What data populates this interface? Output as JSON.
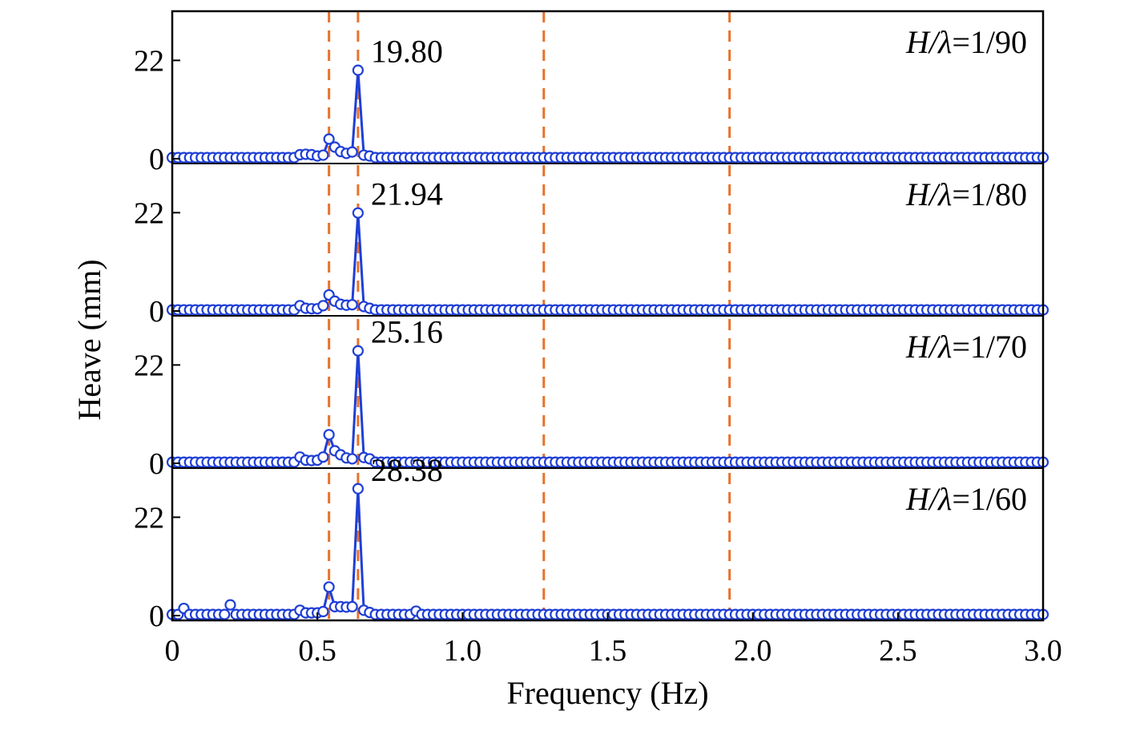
{
  "chart_data": {
    "type": "line",
    "xlabel": "Frequency (Hz)",
    "ylabel": "Heave (mm)",
    "xlim": [
      0,
      3.0
    ],
    "ylim": [
      0,
      33
    ],
    "x_ticks": [
      0,
      0.5,
      1.0,
      1.5,
      2.0,
      2.5,
      3.0
    ],
    "x_tick_labels": [
      "0",
      "0.5",
      "1.0",
      "1.5",
      "2.0",
      "2.5",
      "3.0"
    ],
    "y_ticks": [
      0,
      22
    ],
    "y_tick_labels": [
      "0",
      "22"
    ],
    "reference_lines_x": [
      0.54,
      0.64,
      1.28,
      1.92
    ],
    "colors": {
      "series": "#1f3fd6",
      "reference": "#e8712a"
    },
    "grid": false,
    "panels": [
      {
        "label": "H/λ=1/90",
        "label_italic_part": "H/λ",
        "label_value_part": "=1/90",
        "peak_label": "19.80",
        "peak": {
          "x": 0.64,
          "y": 19.8
        },
        "secondary": [
          {
            "x": 0.44,
            "y": 0.9
          },
          {
            "x": 0.46,
            "y": 1.0
          },
          {
            "x": 0.48,
            "y": 0.9
          },
          {
            "x": 0.5,
            "y": 0.6
          },
          {
            "x": 0.52,
            "y": 0.8
          },
          {
            "x": 0.54,
            "y": 4.4
          },
          {
            "x": 0.56,
            "y": 2.6
          },
          {
            "x": 0.58,
            "y": 1.6
          },
          {
            "x": 0.6,
            "y": 1.2
          },
          {
            "x": 0.62,
            "y": 1.5
          },
          {
            "x": 0.66,
            "y": 0.8
          },
          {
            "x": 0.68,
            "y": 0.6
          }
        ]
      },
      {
        "label": "H/λ=1/80",
        "label_italic_part": "H/λ",
        "label_value_part": "=1/80",
        "peak_label": "21.94",
        "peak": {
          "x": 0.64,
          "y": 21.94
        },
        "secondary": [
          {
            "x": 0.44,
            "y": 1.2
          },
          {
            "x": 0.46,
            "y": 0.6
          },
          {
            "x": 0.48,
            "y": 0.5
          },
          {
            "x": 0.5,
            "y": 0.5
          },
          {
            "x": 0.52,
            "y": 1.2
          },
          {
            "x": 0.54,
            "y": 3.6
          },
          {
            "x": 0.56,
            "y": 2.2
          },
          {
            "x": 0.58,
            "y": 1.5
          },
          {
            "x": 0.6,
            "y": 1.3
          },
          {
            "x": 0.62,
            "y": 1.4
          },
          {
            "x": 0.66,
            "y": 1.0
          },
          {
            "x": 0.68,
            "y": 0.6
          }
        ]
      },
      {
        "label": "H/λ=1/70",
        "label_italic_part": "H/λ",
        "label_value_part": "=1/70",
        "peak_label": "25.16",
        "peak": {
          "x": 0.64,
          "y": 25.16
        },
        "secondary": [
          {
            "x": 0.44,
            "y": 1.4
          },
          {
            "x": 0.46,
            "y": 0.7
          },
          {
            "x": 0.48,
            "y": 0.6
          },
          {
            "x": 0.5,
            "y": 0.7
          },
          {
            "x": 0.52,
            "y": 1.4
          },
          {
            "x": 0.54,
            "y": 6.4
          },
          {
            "x": 0.56,
            "y": 2.8
          },
          {
            "x": 0.58,
            "y": 1.9
          },
          {
            "x": 0.6,
            "y": 1.2
          },
          {
            "x": 0.62,
            "y": 1.0
          },
          {
            "x": 0.66,
            "y": 1.3
          },
          {
            "x": 0.68,
            "y": 1.0
          }
        ]
      },
      {
        "label": "H/λ=1/60",
        "label_italic_part": "H/λ",
        "label_value_part": "=1/60",
        "peak_label": "28.38",
        "peak": {
          "x": 0.64,
          "y": 28.38
        },
        "secondary": [
          {
            "x": 0.04,
            "y": 1.6
          },
          {
            "x": 0.2,
            "y": 2.4
          },
          {
            "x": 0.44,
            "y": 1.2
          },
          {
            "x": 0.46,
            "y": 0.6
          },
          {
            "x": 0.48,
            "y": 0.6
          },
          {
            "x": 0.5,
            "y": 0.6
          },
          {
            "x": 0.52,
            "y": 0.9
          },
          {
            "x": 0.54,
            "y": 6.4
          },
          {
            "x": 0.56,
            "y": 2.0
          },
          {
            "x": 0.58,
            "y": 2.0
          },
          {
            "x": 0.6,
            "y": 1.9
          },
          {
            "x": 0.62,
            "y": 2.0
          },
          {
            "x": 0.66,
            "y": 1.2
          },
          {
            "x": 0.68,
            "y": 0.7
          },
          {
            "x": 0.84,
            "y": 1.0
          }
        ]
      }
    ]
  }
}
